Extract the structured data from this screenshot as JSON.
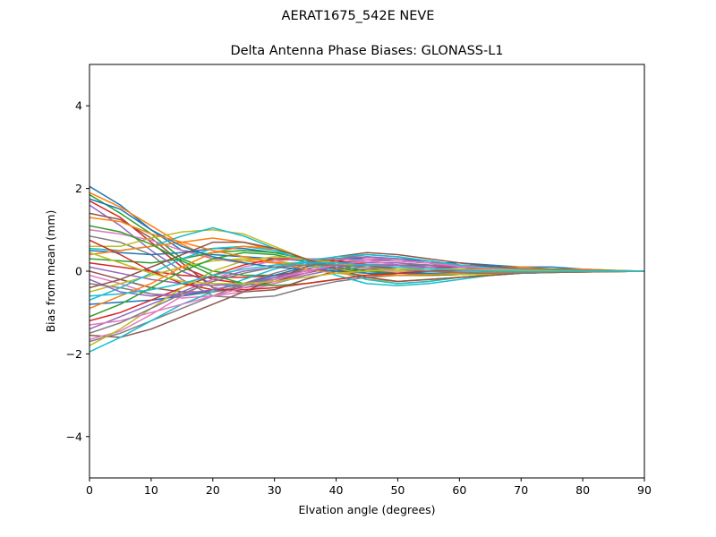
{
  "figure": {
    "suptitle": "AERAT1675_542E  NEVE"
  },
  "chart_data": {
    "type": "line",
    "title": "Delta Antenna Phase Biases: GLONASS-L1",
    "xlabel": "Elvation angle (degrees)",
    "ylabel": "Bias from mean (mm)",
    "xlim": [
      0,
      90
    ],
    "ylim": [
      -5,
      5
    ],
    "xticks": [
      0,
      10,
      20,
      30,
      40,
      50,
      60,
      70,
      80,
      90
    ],
    "yticks": [
      -4,
      -2,
      0,
      2,
      4
    ],
    "xtick_labels": [
      "0",
      "10",
      "20",
      "30",
      "40",
      "50",
      "60",
      "70",
      "80",
      "90"
    ],
    "ytick_labels": [
      "−4",
      "−2",
      "0",
      "2",
      "4"
    ],
    "grid": false,
    "legend": "none",
    "x": [
      0,
      5,
      10,
      15,
      20,
      25,
      30,
      35,
      40,
      45,
      50,
      55,
      60,
      65,
      70,
      75,
      80,
      85,
      90
    ],
    "palette": [
      "#1f77b4",
      "#ff7f0e",
      "#2ca02c",
      "#d62728",
      "#9467bd",
      "#8c564b",
      "#e377c2",
      "#7f7f7f",
      "#bcbd22",
      "#17becf"
    ],
    "series": [
      {
        "values": [
          2.05,
          1.6,
          1.0,
          0.5,
          0.4,
          0.35,
          0.3,
          0.25,
          0.3,
          0.3,
          0.25,
          0.2,
          0.2,
          0.15,
          0.1,
          0.1,
          0.05,
          0.02,
          0.0
        ]
      },
      {
        "values": [
          1.9,
          1.55,
          1.1,
          0.65,
          0.3,
          0.25,
          0.2,
          0.2,
          0.25,
          0.2,
          0.2,
          0.15,
          0.15,
          0.1,
          0.1,
          0.05,
          0.05,
          0.02,
          0.0
        ]
      },
      {
        "values": [
          1.85,
          1.4,
          0.9,
          0.3,
          0.0,
          -0.1,
          -0.1,
          0.0,
          0.1,
          0.15,
          0.15,
          0.15,
          0.1,
          0.1,
          0.05,
          0.05,
          0.02,
          0.01,
          0.0
        ]
      },
      {
        "values": [
          1.7,
          1.3,
          0.7,
          0.1,
          -0.2,
          -0.3,
          -0.2,
          -0.05,
          0.1,
          0.15,
          0.15,
          0.1,
          0.1,
          0.05,
          0.05,
          0.02,
          0.01,
          0.0,
          0.0
        ]
      },
      {
        "values": [
          1.6,
          1.1,
          0.5,
          0.0,
          -0.3,
          -0.4,
          -0.3,
          -0.1,
          0.05,
          0.1,
          0.1,
          0.1,
          0.05,
          0.05,
          0.03,
          0.02,
          0.01,
          0.0,
          0.0
        ]
      },
      {
        "values": [
          1.4,
          1.25,
          0.8,
          0.2,
          -0.4,
          -0.5,
          -0.45,
          -0.2,
          0.0,
          0.05,
          0.05,
          0.05,
          0.05,
          0.03,
          0.02,
          0.01,
          0.0,
          0.0,
          0.0
        ]
      },
      {
        "values": [
          1.0,
          0.9,
          0.75,
          0.5,
          0.3,
          0.2,
          0.1,
          0.05,
          0.0,
          0.0,
          0.0,
          0.0,
          0.0,
          0.0,
          0.0,
          0.0,
          0.0,
          0.0,
          0.0
        ]
      },
      {
        "values": [
          0.85,
          0.7,
          0.4,
          -0.2,
          -0.6,
          -0.65,
          -0.6,
          -0.4,
          -0.25,
          -0.15,
          -0.1,
          -0.05,
          -0.05,
          -0.03,
          -0.02,
          -0.01,
          0.0,
          0.0,
          0.0
        ]
      },
      {
        "values": [
          0.6,
          0.6,
          0.8,
          0.95,
          1.0,
          0.9,
          0.6,
          0.3,
          0.0,
          -0.2,
          -0.25,
          -0.2,
          -0.15,
          -0.1,
          -0.05,
          -0.03,
          -0.02,
          -0.01,
          0.0
        ]
      },
      {
        "values": [
          0.55,
          0.5,
          0.6,
          0.85,
          1.05,
          0.85,
          0.55,
          0.2,
          -0.1,
          -0.3,
          -0.35,
          -0.3,
          -0.2,
          -0.1,
          -0.05,
          -0.03,
          -0.02,
          -0.01,
          0.0
        ]
      },
      {
        "values": [
          0.5,
          0.45,
          0.4,
          0.45,
          0.55,
          0.55,
          0.45,
          0.3,
          0.1,
          -0.05,
          -0.1,
          -0.1,
          -0.08,
          -0.05,
          -0.03,
          -0.02,
          -0.01,
          0.0,
          0.0
        ]
      },
      {
        "values": [
          0.4,
          0.5,
          0.6,
          0.7,
          0.8,
          0.7,
          0.5,
          0.25,
          0.0,
          -0.2,
          -0.3,
          -0.25,
          -0.15,
          -0.1,
          -0.05,
          -0.03,
          -0.02,
          -0.01,
          0.0
        ]
      },
      {
        "values": [
          0.3,
          0.25,
          0.2,
          0.3,
          0.45,
          0.5,
          0.45,
          0.3,
          0.15,
          0.0,
          -0.05,
          -0.05,
          -0.05,
          -0.03,
          -0.02,
          -0.01,
          0.0,
          0.0,
          0.0
        ]
      },
      {
        "values": [
          0.2,
          0.1,
          0.0,
          -0.1,
          -0.15,
          -0.15,
          -0.1,
          0.0,
          0.1,
          0.15,
          0.15,
          0.1,
          0.05,
          0.05,
          0.03,
          0.02,
          0.01,
          0.0,
          0.0
        ]
      },
      {
        "values": [
          0.1,
          -0.05,
          -0.2,
          -0.3,
          -0.35,
          -0.3,
          -0.2,
          -0.05,
          0.1,
          0.2,
          0.2,
          0.15,
          0.1,
          0.05,
          0.03,
          0.02,
          0.01,
          0.0,
          0.0
        ]
      },
      {
        "values": [
          0.0,
          -0.2,
          -0.4,
          -0.5,
          -0.5,
          -0.4,
          -0.25,
          -0.05,
          0.15,
          0.25,
          0.25,
          0.2,
          0.12,
          0.08,
          0.04,
          0.02,
          0.01,
          0.0,
          0.0
        ]
      },
      {
        "values": [
          -0.1,
          -0.3,
          -0.55,
          -0.65,
          -0.6,
          -0.5,
          -0.3,
          -0.05,
          0.2,
          0.3,
          0.3,
          0.25,
          0.15,
          0.1,
          0.05,
          0.03,
          0.01,
          0.0,
          0.0
        ]
      },
      {
        "values": [
          -0.3,
          -0.4,
          -0.55,
          -0.6,
          -0.5,
          -0.35,
          -0.15,
          0.05,
          0.2,
          0.25,
          0.25,
          0.2,
          0.12,
          0.08,
          0.04,
          0.02,
          0.01,
          0.0,
          0.0
        ]
      },
      {
        "values": [
          -0.5,
          -0.3,
          -0.1,
          0.1,
          0.25,
          0.3,
          0.25,
          0.15,
          0.05,
          -0.05,
          -0.1,
          -0.1,
          -0.08,
          -0.05,
          -0.03,
          -0.02,
          -0.01,
          0.0,
          0.0
        ]
      },
      {
        "values": [
          -0.7,
          -0.4,
          -0.05,
          0.3,
          0.55,
          0.6,
          0.5,
          0.25,
          0.0,
          -0.2,
          -0.3,
          -0.25,
          -0.15,
          -0.1,
          -0.05,
          -0.03,
          -0.02,
          -0.01,
          0.0
        ]
      },
      {
        "values": [
          -0.8,
          -0.75,
          -0.7,
          -0.6,
          -0.45,
          -0.3,
          -0.1,
          0.1,
          0.25,
          0.35,
          0.3,
          0.25,
          0.15,
          0.1,
          0.05,
          0.03,
          0.01,
          0.0,
          0.0
        ]
      },
      {
        "values": [
          -0.9,
          -0.6,
          -0.3,
          0.1,
          0.45,
          0.6,
          0.55,
          0.3,
          0.05,
          -0.15,
          -0.25,
          -0.2,
          -0.15,
          -0.1,
          -0.05,
          -0.03,
          -0.02,
          -0.01,
          0.0
        ]
      },
      {
        "values": [
          -1.1,
          -0.8,
          -0.4,
          0.0,
          0.3,
          0.45,
          0.4,
          0.25,
          0.1,
          -0.05,
          -0.1,
          -0.1,
          -0.08,
          -0.05,
          -0.03,
          -0.02,
          -0.01,
          0.0,
          0.0
        ]
      },
      {
        "values": [
          -1.2,
          -1.0,
          -0.7,
          -0.4,
          -0.1,
          0.15,
          0.3,
          0.3,
          0.25,
          0.15,
          0.05,
          0.0,
          -0.02,
          -0.03,
          -0.02,
          -0.01,
          0.0,
          0.0,
          0.0
        ]
      },
      {
        "values": [
          -1.4,
          -1.1,
          -0.8,
          -0.5,
          -0.2,
          0.0,
          0.1,
          0.2,
          0.3,
          0.35,
          0.3,
          0.2,
          0.12,
          0.06,
          0.03,
          0.02,
          0.01,
          0.0,
          0.0
        ]
      },
      {
        "values": [
          -1.55,
          -1.6,
          -1.4,
          -1.1,
          -0.8,
          -0.5,
          -0.2,
          0.1,
          0.35,
          0.45,
          0.4,
          0.3,
          0.2,
          0.12,
          0.06,
          0.03,
          0.01,
          0.0,
          0.0
        ]
      },
      {
        "values": [
          -1.65,
          -1.45,
          -1.05,
          -0.6,
          -0.2,
          0.1,
          0.25,
          0.3,
          0.3,
          0.25,
          0.15,
          0.05,
          0.0,
          -0.03,
          -0.03,
          -0.02,
          -0.01,
          0.0,
          0.0
        ]
      },
      {
        "values": [
          -1.7,
          -1.5,
          -1.2,
          -0.9,
          -0.6,
          -0.3,
          -0.05,
          0.15,
          0.3,
          0.4,
          0.35,
          0.25,
          0.15,
          0.08,
          0.04,
          0.02,
          0.01,
          0.0,
          0.0
        ]
      },
      {
        "values": [
          -1.8,
          -1.4,
          -0.9,
          -0.4,
          0.0,
          0.25,
          0.35,
          0.3,
          0.2,
          0.1,
          0.0,
          -0.05,
          -0.08,
          -0.08,
          -0.05,
          -0.03,
          -0.02,
          -0.01,
          0.0
        ]
      },
      {
        "values": [
          -1.95,
          -1.6,
          -1.2,
          -0.8,
          -0.5,
          -0.2,
          0.05,
          0.25,
          0.35,
          0.4,
          0.35,
          0.25,
          0.15,
          0.08,
          0.04,
          0.02,
          0.01,
          0.0,
          0.0
        ]
      },
      {
        "values": [
          1.75,
          1.5,
          1.0,
          0.6,
          0.35,
          0.2,
          0.1,
          0.05,
          0.0,
          -0.05,
          -0.05,
          -0.05,
          -0.05,
          -0.03,
          -0.02,
          -0.01,
          0.0,
          0.0,
          0.0
        ]
      },
      {
        "values": [
          1.3,
          1.2,
          0.9,
          0.7,
          0.5,
          0.35,
          0.2,
          0.05,
          -0.05,
          -0.1,
          -0.1,
          -0.08,
          -0.05,
          -0.03,
          -0.02,
          -0.01,
          0.0,
          0.0,
          0.0
        ]
      },
      {
        "values": [
          1.1,
          0.95,
          0.65,
          0.25,
          -0.1,
          -0.3,
          -0.35,
          -0.3,
          -0.2,
          -0.1,
          -0.05,
          0.0,
          0.02,
          0.02,
          0.01,
          0.01,
          0.0,
          0.0,
          0.0
        ]
      },
      {
        "values": [
          0.75,
          0.4,
          0.0,
          -0.3,
          -0.45,
          -0.45,
          -0.4,
          -0.3,
          -0.2,
          -0.1,
          -0.05,
          0.0,
          0.02,
          0.02,
          0.01,
          0.01,
          0.0,
          0.0,
          0.0
        ]
      },
      {
        "values": [
          -0.2,
          -0.5,
          -0.6,
          -0.55,
          -0.45,
          -0.3,
          -0.15,
          0.0,
          0.1,
          0.15,
          0.15,
          0.1,
          0.05,
          0.03,
          0.02,
          0.01,
          0.0,
          0.0,
          0.0
        ]
      },
      {
        "values": [
          -0.4,
          -0.2,
          0.1,
          0.4,
          0.7,
          0.7,
          0.55,
          0.3,
          0.05,
          -0.15,
          -0.25,
          -0.2,
          -0.15,
          -0.1,
          -0.05,
          -0.03,
          -0.02,
          -0.01,
          0.0
        ]
      },
      {
        "values": [
          -1.3,
          -1.2,
          -1.0,
          -0.8,
          -0.6,
          -0.4,
          -0.2,
          0.0,
          0.15,
          0.25,
          0.25,
          0.2,
          0.12,
          0.06,
          0.03,
          0.02,
          0.01,
          0.0,
          0.0
        ]
      },
      {
        "values": [
          -1.5,
          -1.25,
          -0.9,
          -0.55,
          -0.25,
          -0.05,
          0.1,
          0.15,
          0.15,
          0.1,
          0.05,
          0.0,
          -0.03,
          -0.05,
          -0.04,
          -0.02,
          -0.01,
          0.0,
          0.0
        ]
      },
      {
        "values": [
          0.45,
          0.2,
          -0.05,
          -0.25,
          -0.3,
          -0.3,
          -0.25,
          -0.15,
          -0.05,
          0.0,
          0.05,
          0.05,
          0.05,
          0.03,
          0.02,
          0.01,
          0.0,
          0.0,
          0.0
        ]
      },
      {
        "values": [
          -0.6,
          -0.55,
          -0.45,
          -0.3,
          -0.1,
          0.05,
          0.15,
          0.2,
          0.2,
          0.15,
          0.1,
          0.05,
          0.02,
          0.0,
          -0.01,
          -0.01,
          0.0,
          0.0,
          0.0
        ]
      }
    ]
  }
}
